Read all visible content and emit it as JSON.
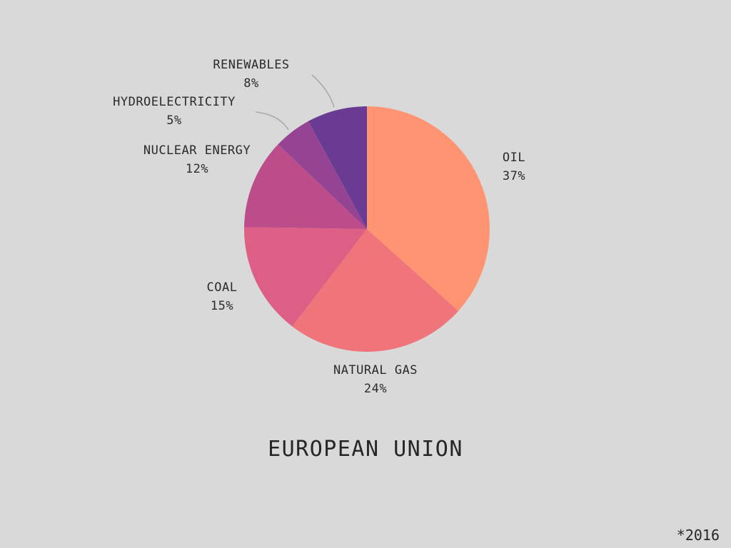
{
  "chart_data": {
    "type": "pie",
    "title": "EUROPEAN UNION",
    "footnote": "*2016",
    "slices": [
      {
        "label": "OIL",
        "value": 37,
        "value_text": "37%",
        "color": "#ff9473"
      },
      {
        "label": "NATURAL GAS",
        "value": 24,
        "value_text": "24%",
        "color": "#f0757a"
      },
      {
        "label": "COAL",
        "value": 15,
        "value_text": "15%",
        "color": "#dd5f86"
      },
      {
        "label": "NUCLEAR ENERGY",
        "value": 12,
        "value_text": "12%",
        "color": "#bc4d8a"
      },
      {
        "label": "HYDROELECTRICITY",
        "value": 5,
        "value_text": "5%",
        "color": "#954494"
      },
      {
        "label": "RENEWABLES",
        "value": 8,
        "value_text": "8%",
        "color": "#6a3b92"
      }
    ]
  }
}
